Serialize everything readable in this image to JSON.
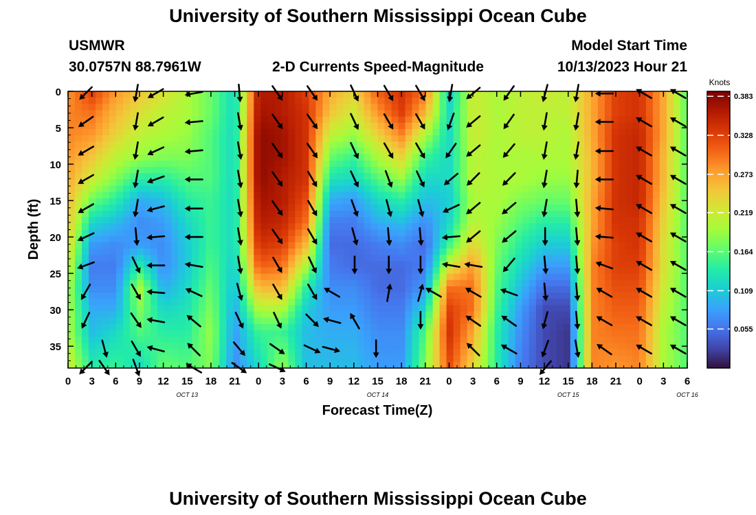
{
  "page": {
    "title_top": "University of Southern Mississippi Ocean Cube",
    "title_bottom": "University of Southern Mississippi Ocean Cube"
  },
  "header": {
    "station": "USMWR",
    "coords": "30.0757N  88.7961W",
    "subtitle": "2-D Currents Speed-Magnitude",
    "model_label": "Model Start Time",
    "model_time": "10/13/2023 Hour 21"
  },
  "colors": {
    "arrow": "#000000",
    "stops": [
      "#30123b",
      "#4145ab",
      "#4675ed",
      "#39a2fc",
      "#1bcfd4",
      "#24eca6",
      "#61fc6c",
      "#a4fc3b",
      "#d1e834",
      "#f3c63a",
      "#fe9b2d",
      "#f36315",
      "#d93806",
      "#b11901",
      "#7a0402"
    ]
  },
  "chart_data": {
    "type": "heatmap",
    "xlabel": "Forecast Time(Z)",
    "ylabel": "Depth (ft)",
    "ylim": [
      0,
      38
    ],
    "y_ticks": [
      0,
      5,
      10,
      15,
      20,
      25,
      30,
      35
    ],
    "x_range_hours": [
      0,
      78
    ],
    "x_tick_labels": [
      "0",
      "3",
      "6",
      "9",
      "12",
      "15",
      "18",
      "21",
      "0",
      "3",
      "6",
      "9",
      "12",
      "15",
      "18",
      "21",
      "0",
      "3",
      "6",
      "9",
      "12",
      "15",
      "18",
      "21",
      "0",
      "3",
      "6"
    ],
    "date_labels": [
      {
        "hour": 15,
        "text": "OCT 13"
      },
      {
        "hour": 39,
        "text": "OCT 14"
      },
      {
        "hour": 63,
        "text": "OCT 15"
      },
      {
        "hour": 78,
        "text": "OCT 16"
      }
    ],
    "colorbar": {
      "label": "Knots",
      "min": 0.0,
      "max": 0.39,
      "ticks": [
        "0.383",
        "0.328",
        "0.273",
        "0.219",
        "0.164",
        "0.109",
        "0.055"
      ],
      "tick_values": [
        0.383,
        0.328,
        0.273,
        0.219,
        0.164,
        0.109,
        0.055
      ]
    },
    "speed_profiles": [
      {
        "hour": 0,
        "speeds": [
          0.28,
          0.29,
          0.29,
          0.28,
          0.27,
          0.26,
          0.25,
          0.24,
          0.22,
          0.2,
          0.2,
          0.2,
          0.22
        ]
      },
      {
        "hour": 3,
        "speeds": [
          0.33,
          0.3,
          0.28,
          0.25,
          0.22,
          0.17,
          0.12,
          0.08,
          0.06,
          0.07,
          0.09,
          0.1,
          0.14
        ]
      },
      {
        "hour": 6,
        "speeds": [
          0.28,
          0.26,
          0.24,
          0.21,
          0.18,
          0.14,
          0.1,
          0.07,
          0.06,
          0.07,
          0.09,
          0.12,
          0.15
        ]
      },
      {
        "hour": 9,
        "speeds": [
          0.25,
          0.23,
          0.21,
          0.19,
          0.14,
          0.09,
          0.07,
          0.08,
          0.14,
          0.2,
          0.18,
          0.16,
          0.12
        ]
      },
      {
        "hour": 12,
        "speeds": [
          0.23,
          0.21,
          0.2,
          0.18,
          0.14,
          0.1,
          0.08,
          0.07,
          0.07,
          0.09,
          0.12,
          0.14,
          0.17
        ]
      },
      {
        "hour": 15,
        "speeds": [
          0.2,
          0.2,
          0.19,
          0.18,
          0.16,
          0.14,
          0.12,
          0.11,
          0.11,
          0.12,
          0.13,
          0.14,
          0.16
        ]
      },
      {
        "hour": 18,
        "speeds": [
          0.17,
          0.17,
          0.16,
          0.16,
          0.16,
          0.15,
          0.15,
          0.15,
          0.16,
          0.17,
          0.18,
          0.19,
          0.18
        ]
      },
      {
        "hour": 21,
        "speeds": [
          0.12,
          0.12,
          0.12,
          0.12,
          0.12,
          0.12,
          0.12,
          0.12,
          0.11,
          0.1,
          0.09,
          0.08,
          0.07
        ]
      },
      {
        "hour": 24,
        "speeds": [
          0.36,
          0.37,
          0.38,
          0.38,
          0.38,
          0.37,
          0.36,
          0.34,
          0.31,
          0.26,
          0.2,
          0.15,
          0.12
        ]
      },
      {
        "hour": 27,
        "speeds": [
          0.36,
          0.36,
          0.37,
          0.37,
          0.36,
          0.36,
          0.35,
          0.33,
          0.3,
          0.26,
          0.2,
          0.15,
          0.19
        ]
      },
      {
        "hour": 30,
        "speeds": [
          0.33,
          0.34,
          0.34,
          0.34,
          0.34,
          0.32,
          0.3,
          0.26,
          0.2,
          0.14,
          0.11,
          0.1,
          0.1
        ]
      },
      {
        "hour": 33,
        "speeds": [
          0.27,
          0.25,
          0.21,
          0.17,
          0.13,
          0.09,
          0.06,
          0.05,
          0.06,
          0.07,
          0.08,
          0.09,
          0.1
        ]
      },
      {
        "hour": 36,
        "speeds": [
          0.24,
          0.22,
          0.19,
          0.15,
          0.12,
          0.08,
          0.06,
          0.05,
          0.05,
          0.07,
          0.08,
          0.09,
          0.1
        ]
      },
      {
        "hour": 39,
        "speeds": [
          0.31,
          0.28,
          0.24,
          0.2,
          0.16,
          0.12,
          0.09,
          0.06,
          0.05,
          0.05,
          0.06,
          0.07,
          0.08
        ]
      },
      {
        "hour": 42,
        "speeds": [
          0.34,
          0.33,
          0.29,
          0.24,
          0.19,
          0.14,
          0.1,
          0.07,
          0.05,
          0.05,
          0.06,
          0.07,
          0.08
        ]
      },
      {
        "hour": 45,
        "speeds": [
          0.3,
          0.26,
          0.2,
          0.15,
          0.12,
          0.1,
          0.07,
          0.05,
          0.06,
          0.08,
          0.12,
          0.16,
          0.18
        ]
      },
      {
        "hour": 48,
        "speeds": [
          0.11,
          0.12,
          0.12,
          0.12,
          0.12,
          0.11,
          0.12,
          0.15,
          0.22,
          0.3,
          0.33,
          0.34,
          0.32
        ]
      },
      {
        "hour": 51,
        "speeds": [
          0.22,
          0.22,
          0.22,
          0.21,
          0.21,
          0.2,
          0.21,
          0.24,
          0.28,
          0.3,
          0.3,
          0.27,
          0.24
        ]
      },
      {
        "hour": 54,
        "speeds": [
          0.2,
          0.2,
          0.2,
          0.2,
          0.2,
          0.2,
          0.19,
          0.18,
          0.17,
          0.16,
          0.15,
          0.14,
          0.14
        ]
      },
      {
        "hour": 57,
        "speeds": [
          0.21,
          0.21,
          0.21,
          0.2,
          0.2,
          0.18,
          0.16,
          0.14,
          0.12,
          0.1,
          0.08,
          0.07,
          0.06
        ]
      },
      {
        "hour": 60,
        "speeds": [
          0.22,
          0.21,
          0.21,
          0.2,
          0.19,
          0.17,
          0.14,
          0.11,
          0.08,
          0.05,
          0.03,
          0.03,
          0.03
        ]
      },
      {
        "hour": 63,
        "speeds": [
          0.21,
          0.21,
          0.2,
          0.2,
          0.19,
          0.17,
          0.14,
          0.11,
          0.08,
          0.05,
          0.03,
          0.02,
          0.02
        ]
      },
      {
        "hour": 66,
        "speeds": [
          0.27,
          0.27,
          0.27,
          0.26,
          0.26,
          0.27,
          0.27,
          0.28,
          0.29,
          0.29,
          0.29,
          0.29,
          0.29
        ]
      },
      {
        "hour": 69,
        "speeds": [
          0.33,
          0.33,
          0.34,
          0.34,
          0.34,
          0.34,
          0.34,
          0.33,
          0.33,
          0.32,
          0.31,
          0.3,
          0.28
        ]
      },
      {
        "hour": 72,
        "speeds": [
          0.34,
          0.34,
          0.35,
          0.35,
          0.35,
          0.35,
          0.34,
          0.34,
          0.33,
          0.32,
          0.31,
          0.3,
          0.29
        ]
      },
      {
        "hour": 75,
        "speeds": [
          0.27,
          0.27,
          0.27,
          0.26,
          0.26,
          0.25,
          0.24,
          0.23,
          0.23,
          0.22,
          0.21,
          0.2,
          0.2
        ]
      },
      {
        "hour": 78,
        "speeds": [
          0.16,
          0.16,
          0.16,
          0.16,
          0.16,
          0.16,
          0.16,
          0.16,
          0.16,
          0.16,
          0.16,
          0.16,
          0.16
        ]
      }
    ],
    "profile_depths": [
      0,
      3,
      6,
      9,
      12,
      15,
      18,
      21,
      24,
      27,
      30,
      33,
      38
    ],
    "arrow_depths": [
      0.3,
      4.2,
      8.2,
      12.1,
      16.1,
      20.0,
      23.9,
      27.6,
      31.5,
      35.4,
      38.0
    ],
    "arrow_columns": [
      {
        "hour": 2.2,
        "dirs": [
          225,
          235,
          240,
          240,
          240,
          245,
          250,
          210,
          205,
          null,
          225
        ]
      },
      {
        "hour": 4.6,
        "dirs": [
          null,
          null,
          null,
          null,
          null,
          null,
          null,
          null,
          null,
          165,
          145
        ]
      },
      {
        "hour": 8.6,
        "dirs": [
          190,
          190,
          190,
          190,
          190,
          175,
          155,
          150,
          145,
          150,
          160
        ]
      },
      {
        "hour": 11.0,
        "dirs": [
          240,
          240,
          245,
          250,
          255,
          265,
          270,
          275,
          280,
          285,
          null
        ]
      },
      {
        "hour": 15.8,
        "dirs": [
          260,
          265,
          265,
          270,
          270,
          270,
          280,
          295,
          310,
          315,
          300
        ]
      },
      {
        "hour": 21.6,
        "dirs": [
          175,
          170,
          170,
          170,
          170,
          170,
          170,
          165,
          155,
          140,
          125
        ]
      },
      {
        "hour": 26.4,
        "dirs": [
          145,
          145,
          145,
          145,
          145,
          145,
          150,
          150,
          155,
          125,
          115
        ]
      },
      {
        "hour": 30.8,
        "dirs": [
          145,
          145,
          145,
          150,
          150,
          150,
          155,
          150,
          135,
          115,
          null
        ]
      },
      {
        "hour": 33.2,
        "dirs": [
          null,
          null,
          null,
          null,
          null,
          null,
          null,
          300,
          285,
          105,
          null
        ]
      },
      {
        "hour": 36.1,
        "dirs": [
          155,
          155,
          155,
          155,
          160,
          165,
          180,
          null,
          330,
          null,
          null
        ]
      },
      {
        "hour": 38.8,
        "dirs": [
          null,
          null,
          null,
          null,
          null,
          null,
          null,
          null,
          null,
          180,
          null
        ]
      },
      {
        "hour": 40.4,
        "dirs": [
          150,
          150,
          150,
          160,
          165,
          175,
          180,
          10,
          null,
          null,
          null
        ]
      },
      {
        "hour": 44.4,
        "dirs": [
          150,
          150,
          150,
          155,
          165,
          175,
          180,
          15,
          180,
          null,
          null
        ]
      },
      {
        "hour": 46.0,
        "dirs": [
          null,
          null,
          null,
          null,
          null,
          null,
          null,
          300,
          null,
          null,
          null
        ]
      },
      {
        "hour": 48.2,
        "dirs": [
          190,
          200,
          215,
          230,
          245,
          265,
          280,
          null,
          null,
          null,
          null
        ]
      },
      {
        "hour": 51.0,
        "dirs": [
          230,
          230,
          230,
          225,
          230,
          230,
          280,
          300,
          305,
          315,
          null
        ]
      },
      {
        "hour": 55.5,
        "dirs": [
          215,
          215,
          220,
          225,
          230,
          230,
          220,
          290,
          305,
          300,
          null
        ]
      },
      {
        "hour": 60.1,
        "dirs": [
          195,
          190,
          190,
          190,
          190,
          180,
          175,
          175,
          195,
          200,
          220
        ]
      },
      {
        "hour": 64.1,
        "dirs": [
          190,
          190,
          190,
          185,
          175,
          175,
          175,
          175,
          175,
          170,
          null
        ]
      },
      {
        "hour": 67.5,
        "dirs": [
          270,
          270,
          270,
          270,
          275,
          275,
          290,
          300,
          300,
          305,
          null
        ]
      },
      {
        "hour": 72.5,
        "dirs": [
          300,
          300,
          300,
          300,
          300,
          300,
          300,
          300,
          300,
          300,
          null
        ]
      },
      {
        "hour": 76.8,
        "dirs": [
          300,
          300,
          300,
          300,
          300,
          300,
          300,
          300,
          300,
          300,
          null
        ]
      }
    ]
  }
}
